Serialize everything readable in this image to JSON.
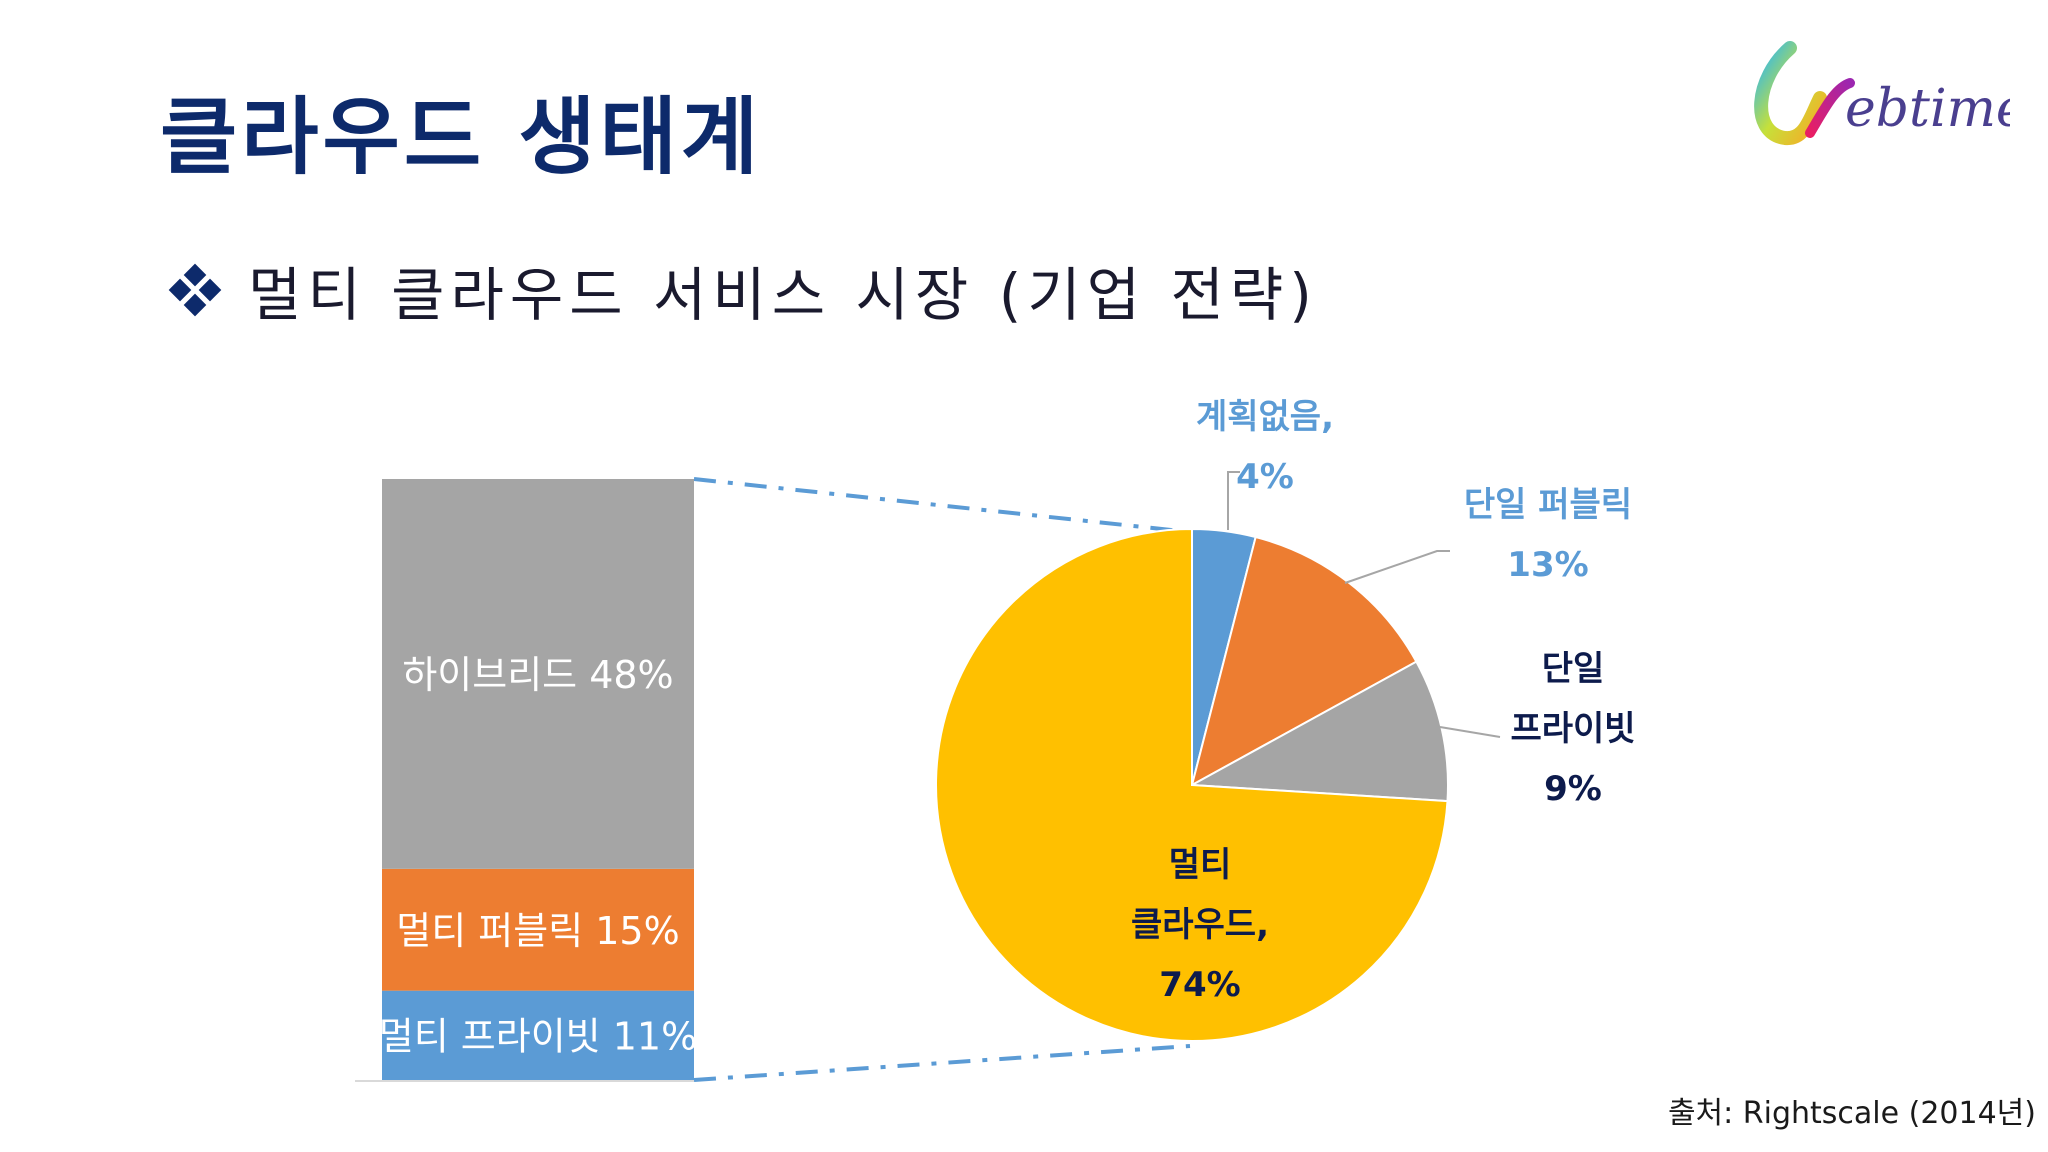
{
  "slide": {
    "title": "클라우드 생태계",
    "subtitle": "멀티 클라우드 서비스 시장 (기업 전략)",
    "source": "출처: Rightscale (2014년)",
    "logo_text": "ebtime"
  },
  "chart_data": [
    {
      "type": "pie",
      "slices": [
        {
          "label_lines": [
            "계획없음,",
            "4%"
          ],
          "value": 4,
          "color": "#5b9bd5",
          "label_color": "#5b9bd5"
        },
        {
          "label_lines": [
            "단일 퍼블릭",
            "13%"
          ],
          "value": 13,
          "color": "#ed7d31",
          "label_color": "#5b9bd5"
        },
        {
          "label_lines": [
            "단일",
            "프라이빗",
            "9%"
          ],
          "value": 9,
          "color": "#a5a5a5",
          "label_color": "#0d1b4c"
        },
        {
          "label_lines": [
            "멀티",
            "클라우드,",
            "74%"
          ],
          "value": 74,
          "color": "#ffc000",
          "label_color": "#0d1b4c"
        }
      ]
    },
    {
      "type": "bar",
      "stacked": true,
      "segments": [
        {
          "label": "멀티 프라이빗 11%",
          "value": 11,
          "color": "#5b9bd5"
        },
        {
          "label": "멀티 퍼블릭 15%",
          "value": 15,
          "color": "#ed7d31"
        },
        {
          "label": "하이브리드 48%",
          "value": 48,
          "color": "#a5a5a5"
        }
      ]
    }
  ]
}
